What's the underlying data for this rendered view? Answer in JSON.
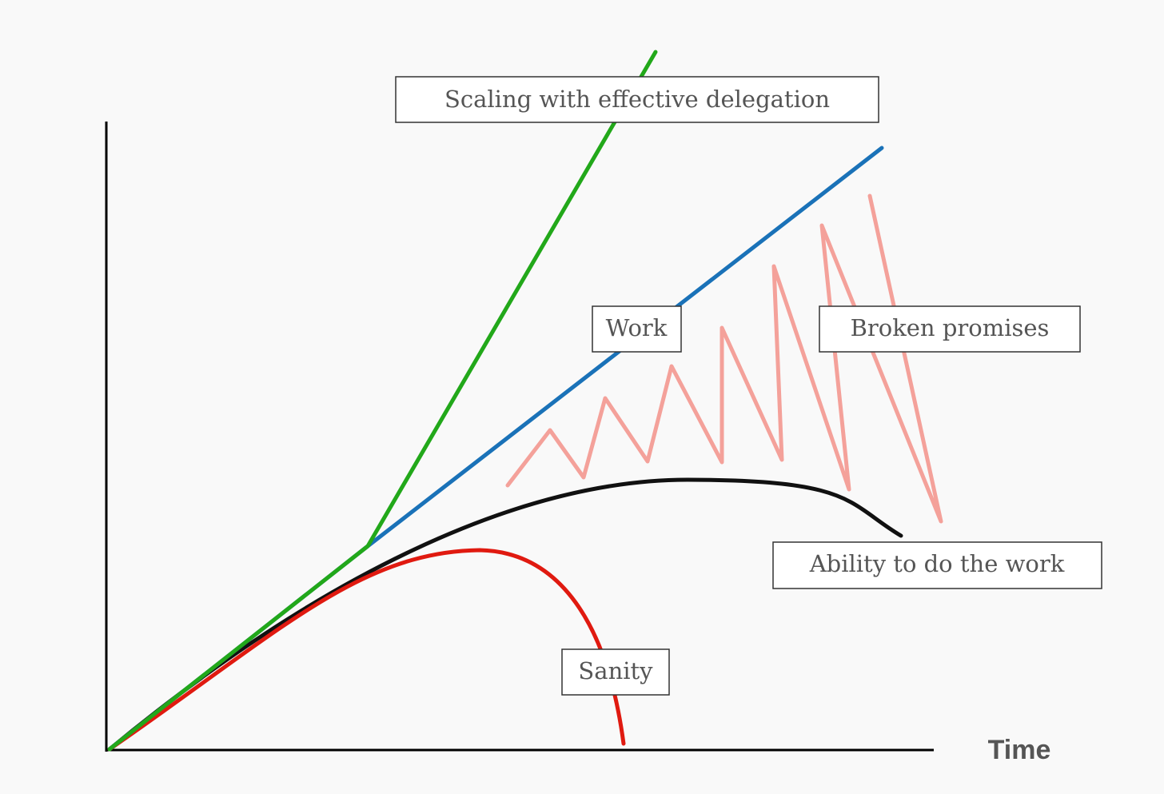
{
  "x_axis_label": "Time",
  "labels": {
    "scaling": "Scaling with effective delegation",
    "work": "Work",
    "broken_promises": "Broken promises",
    "ability": "Ability to do the work",
    "sanity": "Sanity"
  }
}
